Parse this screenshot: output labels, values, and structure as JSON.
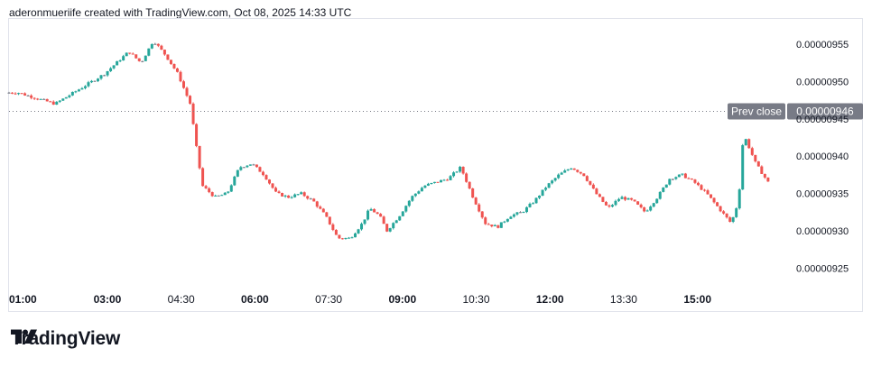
{
  "header": {
    "caption": "aderonmueriife created with TradingView.com, Oct 08, 2025 14:33 UTC"
  },
  "brand": {
    "name": "TradingView",
    "logo_icon": "tradingview-logo-icon"
  },
  "colors": {
    "up": "#26a69a",
    "down": "#ef5350",
    "neutral": "#787b86",
    "label_bg": "#787b86",
    "text": "#131722"
  },
  "chart_data": {
    "type": "line",
    "x_ticks": [
      "01:00",
      "03:00",
      "04:30",
      "06:00",
      "07:30",
      "09:00",
      "10:30",
      "12:00",
      "13:30",
      "15:00"
    ],
    "y_ticks": [
      "0.00000955",
      "0.00000950",
      "0.00000945",
      "0.00000940",
      "0.00000935",
      "0.00000930",
      "0.00000925"
    ],
    "ylim": [
      9.225e-06,
      9.585e-06
    ],
    "prev_close": {
      "label": "Prev close",
      "value_text": "0.00000946",
      "value": 9.46e-06
    },
    "series": [
      {
        "x": [
          0.25,
          1.0,
          2.0,
          2.5,
          2.75,
          3.0,
          3.25,
          3.5,
          3.75,
          3.9,
          4.0,
          4.25,
          4.5,
          4.75,
          5.0,
          5.25,
          5.5,
          5.75,
          6.0,
          6.25,
          6.5,
          6.75,
          7.0,
          7.25,
          7.4,
          7.6,
          7.75,
          8.0,
          8.25,
          8.5,
          8.75,
          9.0,
          9.25,
          9.5,
          9.75,
          10.0,
          10.25,
          10.5,
          10.75,
          11.0,
          11.25,
          11.5,
          11.75,
          12.0,
          12.25,
          12.5,
          12.75,
          13.0,
          13.25,
          13.5,
          13.75,
          14.0,
          14.25,
          14.5,
          14.75,
          14.9,
          15.0,
          15.25,
          15.5
        ],
        "values": [
          9.485e-06,
          9.47e-06,
          9.51e-06,
          9.54e-06,
          9.525e-06,
          9.555e-06,
          9.535e-06,
          9.51e-06,
          9.47e-06,
          9.4e-06,
          9.36e-06,
          9.345e-06,
          9.35e-06,
          9.385e-06,
          9.39e-06,
          9.375e-06,
          9.35e-06,
          9.345e-06,
          9.35e-06,
          9.34e-06,
          9.32e-06,
          9.29e-06,
          9.29e-06,
          9.31e-06,
          9.33e-06,
          9.32e-06,
          9.3e-06,
          9.32e-06,
          9.345e-06,
          9.36e-06,
          9.365e-06,
          9.37e-06,
          9.385e-06,
          9.345e-06,
          9.31e-06,
          9.305e-06,
          9.32e-06,
          9.325e-06,
          9.34e-06,
          9.36e-06,
          9.375e-06,
          9.385e-06,
          9.375e-06,
          9.35e-06,
          9.33e-06,
          9.345e-06,
          9.34e-06,
          9.325e-06,
          9.345e-06,
          9.37e-06,
          9.375e-06,
          9.365e-06,
          9.35e-06,
          9.33e-06,
          9.31e-06,
          9.34e-06,
          9.43e-06,
          9.39e-06,
          9.365e-06
        ]
      }
    ]
  }
}
